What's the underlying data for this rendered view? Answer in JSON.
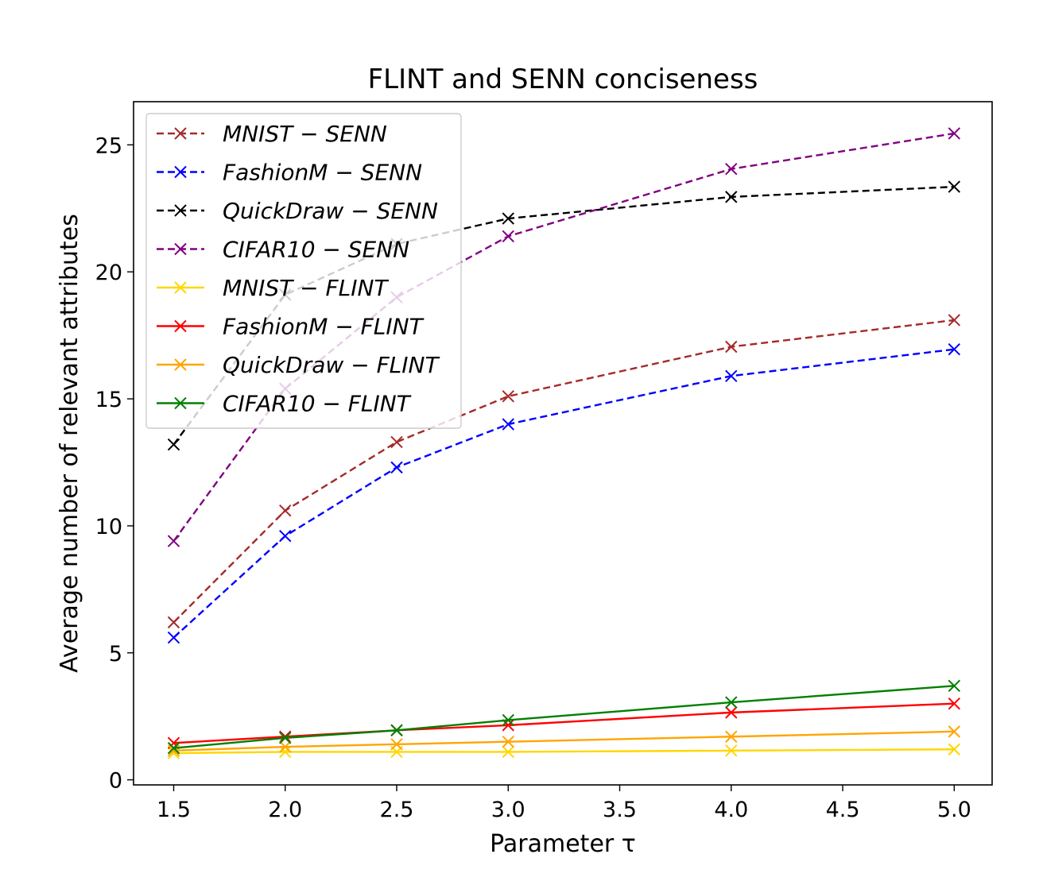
{
  "chart_data": {
    "type": "line",
    "title": "FLINT and SENN conciseness",
    "xlabel": "Parameter τ",
    "ylabel": "Average number of relevant attributes",
    "xlim": [
      1.32,
      5.17
    ],
    "ylim": [
      -0.2,
      26.7
    ],
    "xticks": [
      "1.5",
      "2.0",
      "2.5",
      "3.0",
      "3.5",
      "4.0",
      "4.5",
      "5.0"
    ],
    "yticks": [
      "0",
      "5",
      "10",
      "15",
      "20",
      "25"
    ],
    "grid": false,
    "legend_position": "upper-left",
    "marker": "x",
    "series": [
      {
        "name": "MNIST − SENN",
        "color": "#a52a2a",
        "dash": true,
        "x": [
          1.5,
          2.0,
          2.5,
          3.0,
          4.0,
          5.0
        ],
        "y": [
          6.2,
          10.6,
          13.3,
          15.1,
          17.05,
          18.1
        ]
      },
      {
        "name": "FashionM − SENN",
        "color": "#0000ff",
        "dash": true,
        "x": [
          1.5,
          2.0,
          2.5,
          3.0,
          4.0,
          5.0
        ],
        "y": [
          5.6,
          9.6,
          12.3,
          14.0,
          15.9,
          16.95
        ]
      },
      {
        "name": "QuickDraw − SENN",
        "color": "#000000",
        "dash": true,
        "x": [
          1.5,
          2.0,
          2.5,
          3.0,
          4.0,
          5.0
        ],
        "y": [
          13.2,
          19.1,
          21.1,
          22.1,
          22.95,
          23.35
        ]
      },
      {
        "name": "CIFAR10 − SENN",
        "color": "#800080",
        "dash": true,
        "x": [
          1.5,
          2.0,
          2.5,
          3.0,
          4.0,
          5.0
        ],
        "y": [
          9.4,
          15.4,
          19.0,
          21.4,
          24.05,
          25.45
        ]
      },
      {
        "name": "MNIST − FLINT",
        "color": "#ffd700",
        "dash": false,
        "x": [
          1.5,
          2.0,
          2.5,
          3.0,
          4.0,
          5.0
        ],
        "y": [
          1.05,
          1.1,
          1.1,
          1.1,
          1.15,
          1.2
        ]
      },
      {
        "name": "FashionM − FLINT",
        "color": "#ff0000",
        "dash": false,
        "x": [
          1.5,
          2.0,
          2.5,
          3.0,
          4.0,
          5.0
        ],
        "y": [
          1.45,
          1.7,
          1.95,
          2.15,
          2.65,
          3.0
        ]
      },
      {
        "name": "QuickDraw − FLINT",
        "color": "#ffa500",
        "dash": false,
        "x": [
          1.5,
          2.0,
          2.5,
          3.0,
          4.0,
          5.0
        ],
        "y": [
          1.15,
          1.3,
          1.4,
          1.5,
          1.7,
          1.9
        ]
      },
      {
        "name": "CIFAR10 − FLINT",
        "color": "#008000",
        "dash": false,
        "x": [
          1.5,
          2.0,
          2.5,
          3.0,
          4.0,
          5.0
        ],
        "y": [
          1.25,
          1.65,
          1.95,
          2.35,
          3.05,
          3.7
        ]
      }
    ]
  }
}
